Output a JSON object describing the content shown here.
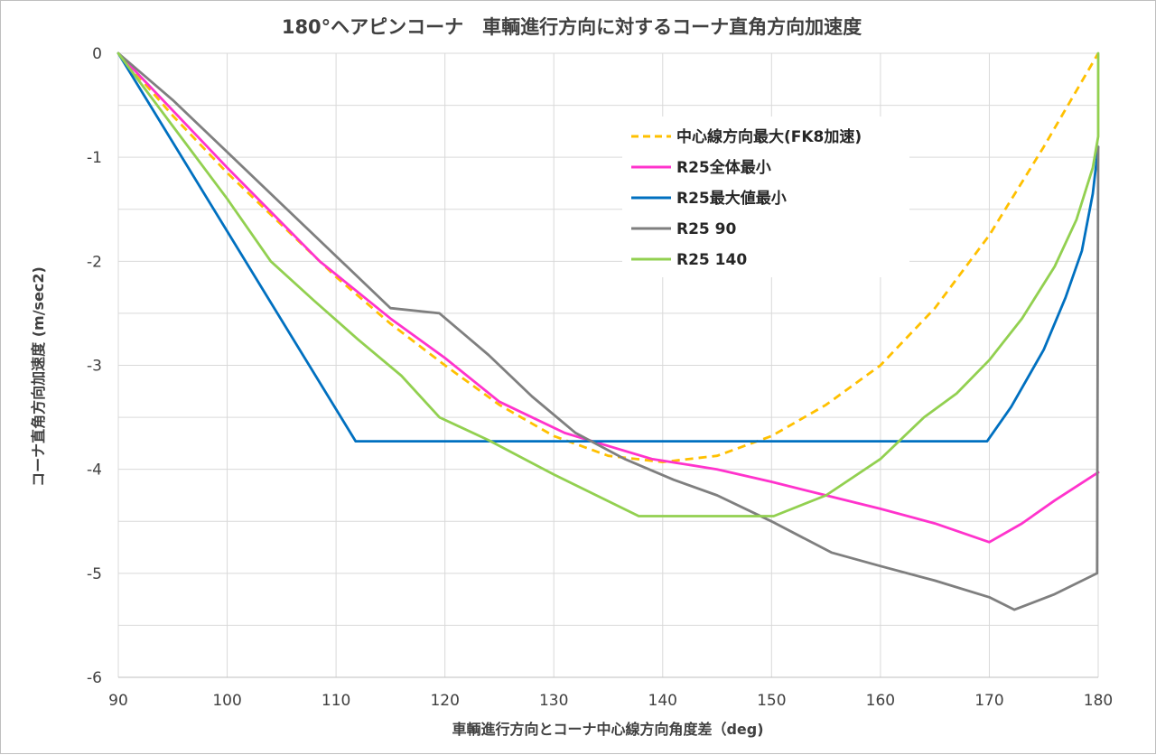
{
  "chart_data": {
    "type": "line",
    "title": "180°ヘアピンコーナ　車輌進行方向に対するコーナ直角方向加速度",
    "xlabel": "車輌進行方向とコーナ中心線方向角度差（deg)",
    "ylabel": "コーナ直角方向加速度 (m/sec2)",
    "xlim": [
      90,
      180
    ],
    "ylim": [
      -6,
      0
    ],
    "x_ticks": [
      90,
      100,
      110,
      120,
      130,
      140,
      150,
      160,
      170,
      180
    ],
    "y_ticks": [
      0,
      -1,
      -2,
      -3,
      -4,
      -5,
      -6
    ],
    "x_tick_labels": [
      "90",
      "100",
      "110",
      "120",
      "130",
      "140",
      "150",
      "160",
      "170",
      "180"
    ],
    "y_tick_labels": [
      "0",
      "-1",
      "-2",
      "-3",
      "-4",
      "-5",
      "-6"
    ],
    "grid": true,
    "legend_position": "top-right",
    "series": [
      {
        "name": "中心線方向最大(FK8加速)",
        "color": "#FFC000",
        "style": "dashed",
        "points": [
          [
            90,
            0
          ],
          [
            95,
            -0.6
          ],
          [
            100,
            -1.15
          ],
          [
            105,
            -1.65
          ],
          [
            110,
            -2.15
          ],
          [
            115,
            -2.6
          ],
          [
            120,
            -3.0
          ],
          [
            125,
            -3.38
          ],
          [
            130,
            -3.68
          ],
          [
            135,
            -3.87
          ],
          [
            140,
            -3.93
          ],
          [
            145,
            -3.87
          ],
          [
            150,
            -3.68
          ],
          [
            155,
            -3.38
          ],
          [
            160,
            -3.0
          ],
          [
            165,
            -2.45
          ],
          [
            170,
            -1.75
          ],
          [
            175,
            -0.9
          ],
          [
            180,
            0
          ]
        ]
      },
      {
        "name": "R25全体最小",
        "color": "#FF33CC",
        "style": "solid",
        "points": [
          [
            90,
            0
          ],
          [
            95,
            -0.55
          ],
          [
            100,
            -1.1
          ],
          [
            108.5,
            -2.0
          ],
          [
            115,
            -2.55
          ],
          [
            120,
            -2.93
          ],
          [
            125,
            -3.35
          ],
          [
            131,
            -3.65
          ],
          [
            139,
            -3.9
          ],
          [
            145,
            -4.0
          ],
          [
            150,
            -4.12
          ],
          [
            155,
            -4.25
          ],
          [
            160,
            -4.38
          ],
          [
            165,
            -4.52
          ],
          [
            170,
            -4.7
          ],
          [
            173,
            -4.52
          ],
          [
            176,
            -4.3
          ],
          [
            180,
            -4.03
          ]
        ]
      },
      {
        "name": "R25最大値最小",
        "color": "#0070C0",
        "style": "solid",
        "points": [
          [
            90,
            0
          ],
          [
            111.8,
            -3.73
          ],
          [
            150,
            -3.73
          ],
          [
            169.8,
            -3.73
          ],
          [
            172,
            -3.4
          ],
          [
            175,
            -2.85
          ],
          [
            177,
            -2.35
          ],
          [
            178.5,
            -1.9
          ],
          [
            179.5,
            -1.35
          ],
          [
            180,
            -0.9
          ]
        ]
      },
      {
        "name": "R25 90",
        "color": "#7F7F7F",
        "style": "solid",
        "points": [
          [
            90,
            0
          ],
          [
            95,
            -0.45
          ],
          [
            100,
            -0.95
          ],
          [
            105,
            -1.45
          ],
          [
            110,
            -1.95
          ],
          [
            115,
            -2.45
          ],
          [
            119.5,
            -2.5
          ],
          [
            124,
            -2.9
          ],
          [
            128,
            -3.3
          ],
          [
            132,
            -3.65
          ],
          [
            136.5,
            -3.9
          ],
          [
            141,
            -4.1
          ],
          [
            145,
            -4.25
          ],
          [
            150,
            -4.5
          ],
          [
            155.5,
            -4.8
          ],
          [
            160,
            -4.93
          ],
          [
            165,
            -5.07
          ],
          [
            170,
            -5.23
          ],
          [
            172.3,
            -5.35
          ],
          [
            176,
            -5.2
          ],
          [
            179.9,
            -5.0
          ],
          [
            180,
            -0.9
          ]
        ]
      },
      {
        "name": "R25 140",
        "color": "#92D050",
        "style": "solid",
        "points": [
          [
            90,
            0
          ],
          [
            95,
            -0.7
          ],
          [
            100,
            -1.4
          ],
          [
            104,
            -2.0
          ],
          [
            108,
            -2.38
          ],
          [
            112,
            -2.75
          ],
          [
            116,
            -3.1
          ],
          [
            119.5,
            -3.5
          ],
          [
            124,
            -3.72
          ],
          [
            130,
            -4.05
          ],
          [
            137.8,
            -4.45
          ],
          [
            145,
            -4.45
          ],
          [
            150.2,
            -4.45
          ],
          [
            155,
            -4.25
          ],
          [
            160,
            -3.9
          ],
          [
            164,
            -3.5
          ],
          [
            167,
            -3.27
          ],
          [
            170,
            -2.95
          ],
          [
            173,
            -2.55
          ],
          [
            176,
            -2.05
          ],
          [
            178,
            -1.6
          ],
          [
            179.5,
            -1.1
          ],
          [
            180,
            -0.8
          ],
          [
            180,
            0
          ]
        ]
      }
    ]
  }
}
